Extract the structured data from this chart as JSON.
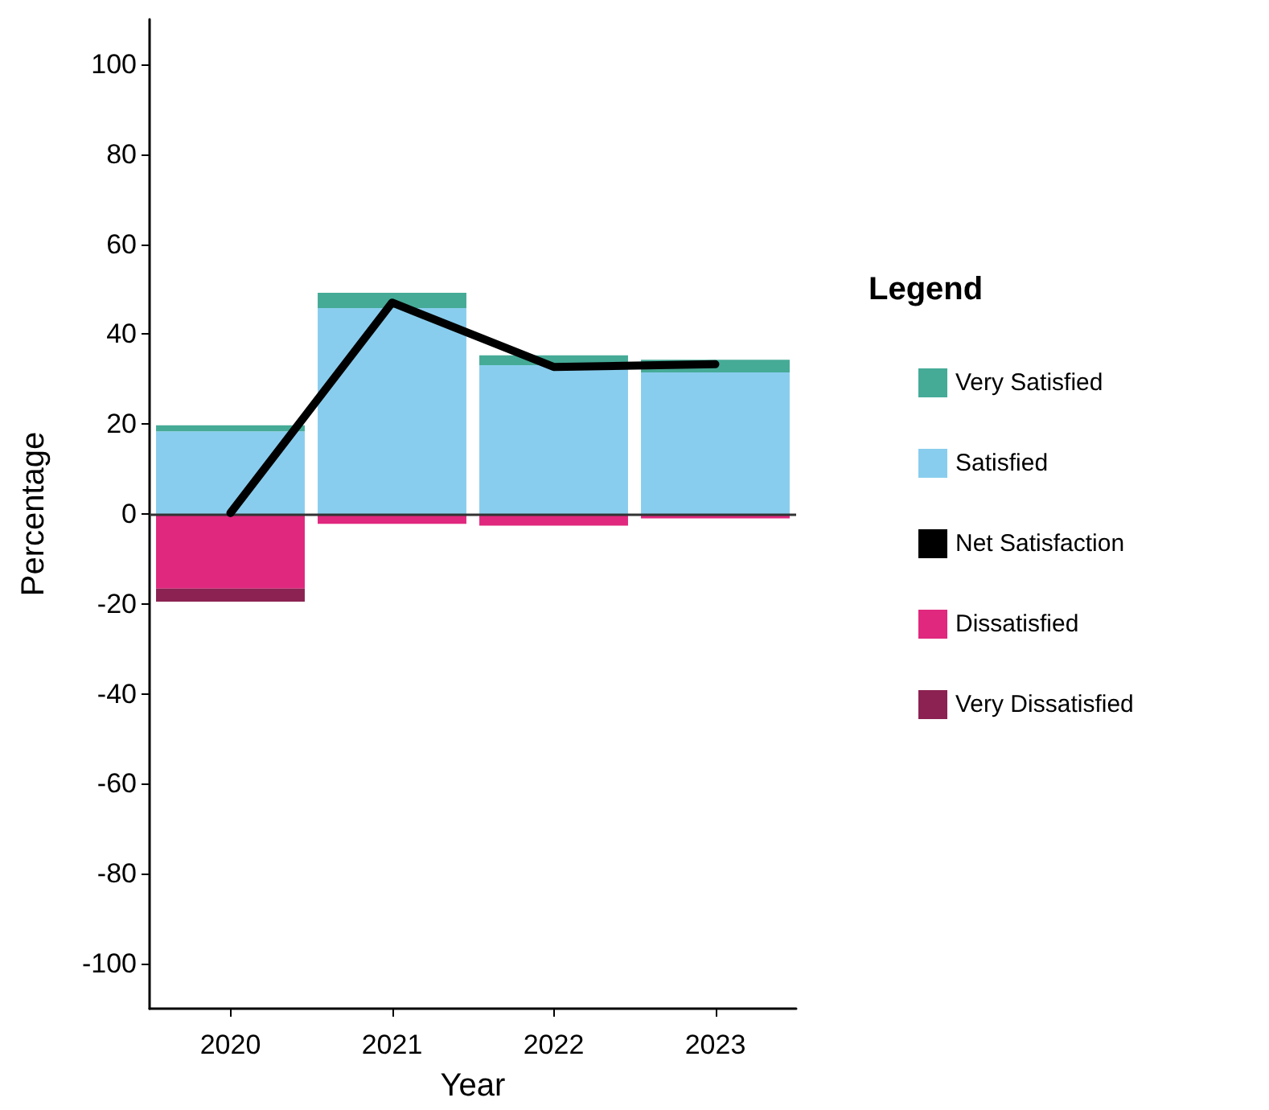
{
  "chart_data": {
    "type": "bar",
    "stacked": true,
    "xlabel": "Year",
    "ylabel": "Percentage",
    "legend_title": "Legend",
    "legend": "right",
    "categories": [
      "2020",
      "2021",
      "2022",
      "2023"
    ],
    "series": [
      {
        "name": "Satisfied",
        "color": "#89cdee",
        "values": [
          18.4,
          45.8,
          33.1,
          31.5
        ]
      },
      {
        "name": "Very Satisfied",
        "color": "#45ab97",
        "values": [
          1.3,
          3.4,
          2.2,
          2.8
        ]
      },
      {
        "name": "Net Satisfaction",
        "color": "#000000",
        "type": "line",
        "marker": "none",
        "values": [
          0.2,
          47,
          32.7,
          33.3
        ]
      },
      {
        "name": "Dissatisfied",
        "color": "#e0287e",
        "values": [
          -16.6,
          -2.2,
          -2.6,
          -1.0
        ]
      },
      {
        "name": "Very Dissatisfied",
        "color": "#8b2252",
        "values": [
          -2.9,
          0,
          0,
          0
        ]
      }
    ],
    "ylim": [
      -110,
      110
    ],
    "yticks": [
      -100,
      -80,
      -60,
      -40,
      -20,
      0,
      20,
      40,
      60,
      80,
      100
    ],
    "grid": false,
    "ref_lines": [
      {
        "axis": "y",
        "value": 0,
        "color": "#333333"
      }
    ]
  }
}
